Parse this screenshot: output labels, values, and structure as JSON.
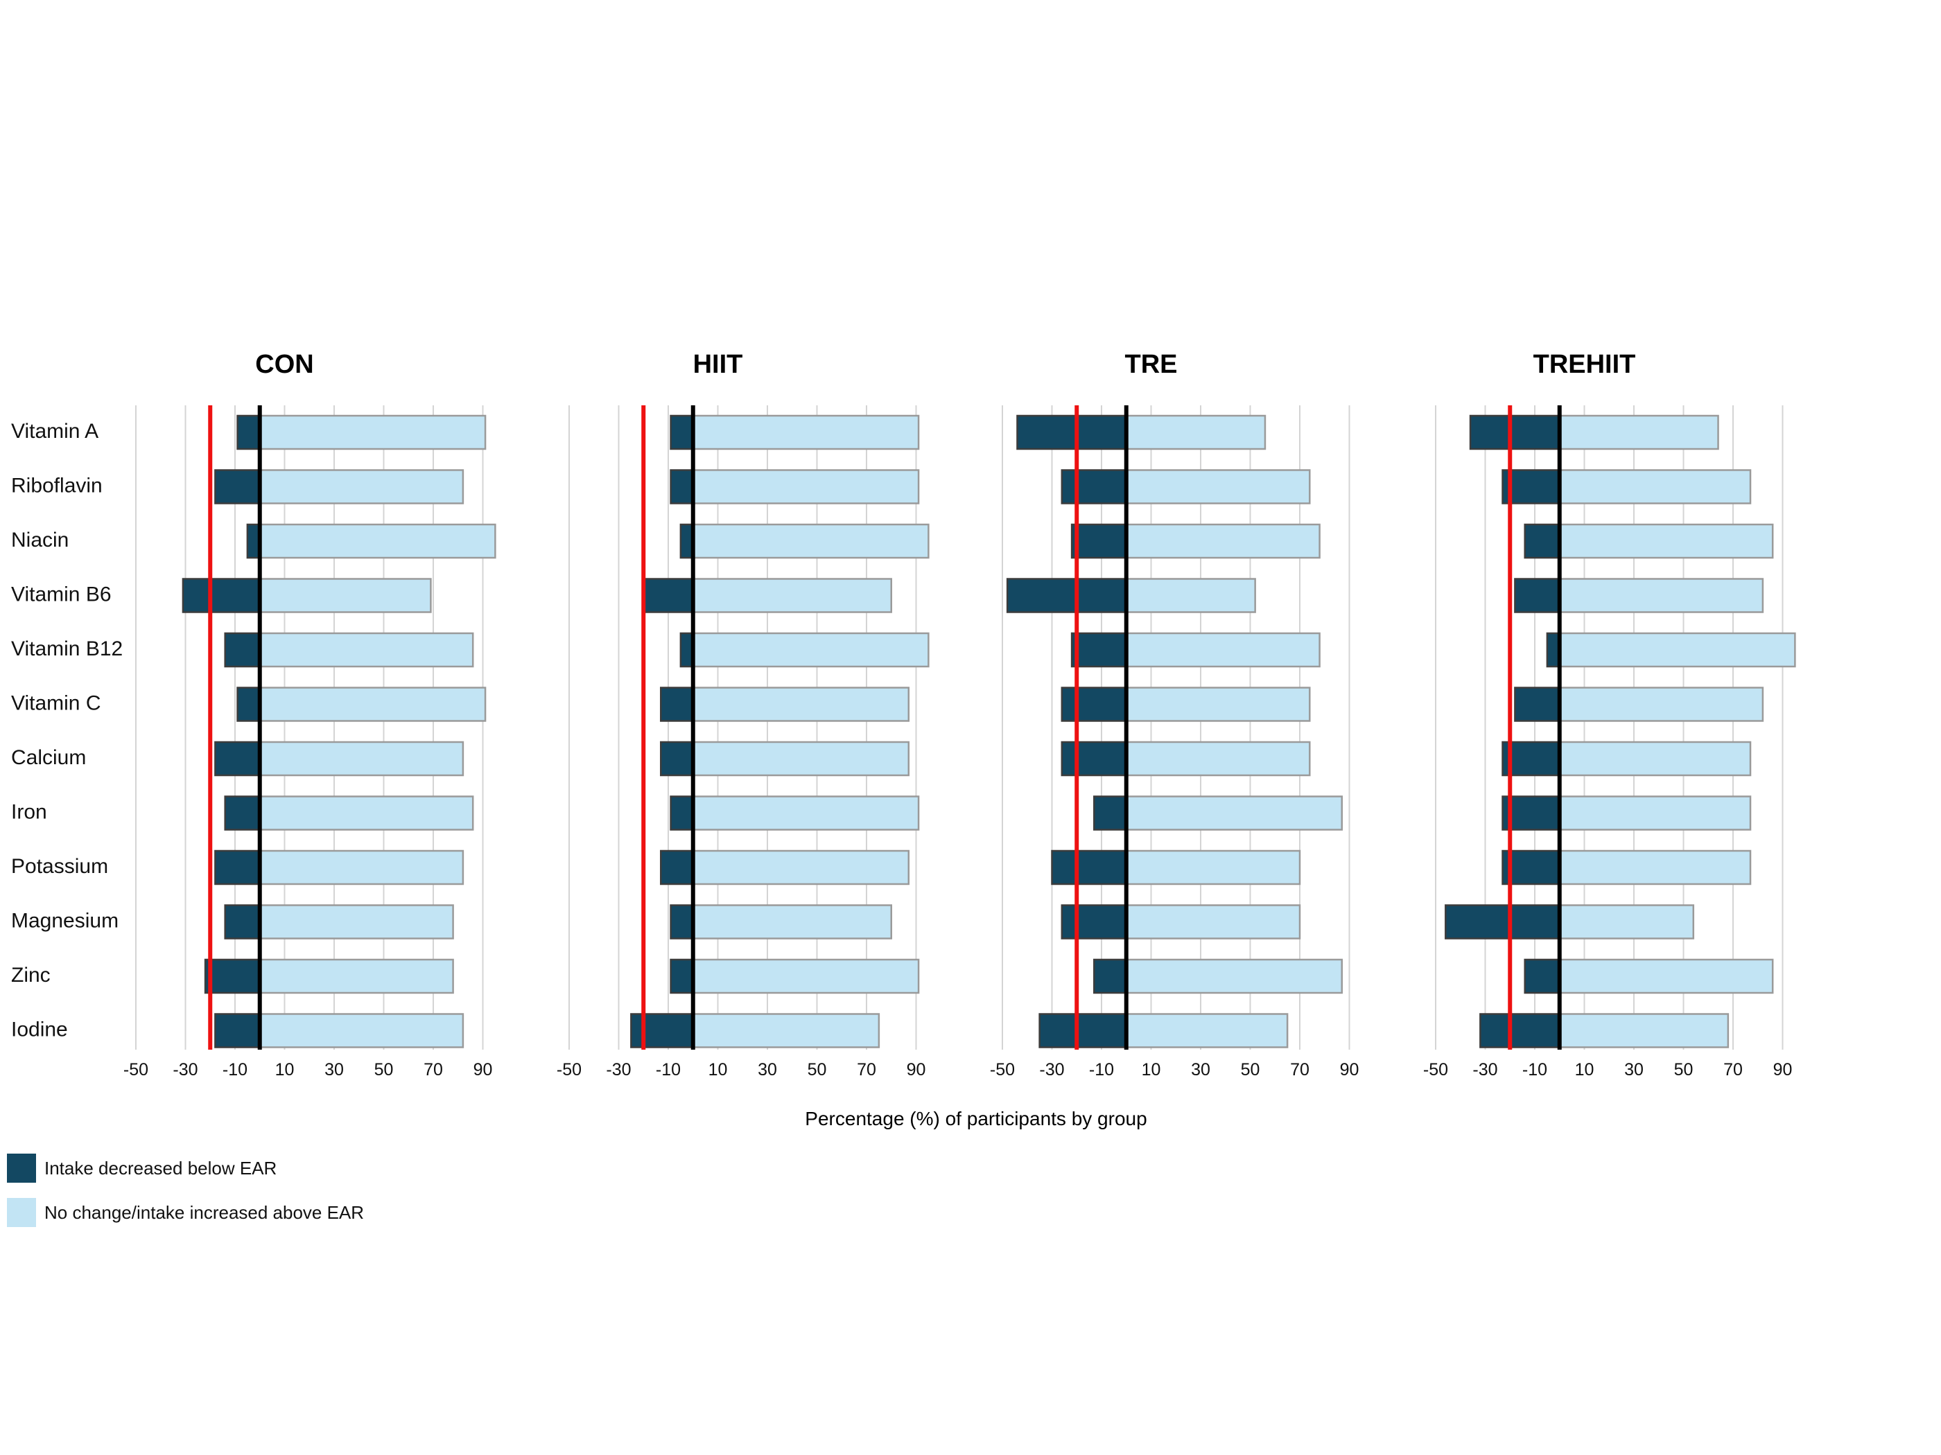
{
  "chart_data": {
    "type": "bar",
    "orientation": "horizontal",
    "stacked": "diverging",
    "xlabel": "Percentage (%) of participants by group",
    "xlim": [
      -50,
      100
    ],
    "xticks": [
      -50,
      -30,
      -10,
      10,
      30,
      50,
      70,
      90
    ],
    "reference_line": -20,
    "zero_line": 0,
    "grid": "vertical",
    "categories": [
      "Vitamin A",
      "Riboflavin",
      "Niacin",
      "Vitamin B6",
      "Vitamin B12",
      "Vitamin C",
      "Calcium",
      "Iron",
      "Potassium",
      "Magnesium",
      "Zinc",
      "Iodine"
    ],
    "panels": [
      {
        "title": "CON",
        "decreased": [
          -9,
          -18,
          -5,
          -31,
          -14,
          -9,
          -18,
          -14,
          -18,
          -14,
          -22,
          -18
        ],
        "increased": [
          91,
          82,
          95,
          69,
          86,
          91,
          82,
          86,
          82,
          78,
          78,
          82
        ]
      },
      {
        "title": "HIIT",
        "decreased": [
          -9,
          -9,
          -5,
          -20,
          -5,
          -13,
          -13,
          -9,
          -13,
          -9,
          -9,
          -25
        ],
        "increased": [
          91,
          91,
          95,
          80,
          95,
          87,
          87,
          91,
          87,
          80,
          91,
          75
        ]
      },
      {
        "title": "TRE",
        "decreased": [
          -44,
          -26,
          -22,
          -48,
          -22,
          -26,
          -26,
          -13,
          -30,
          -26,
          -13,
          -35
        ],
        "increased": [
          56,
          74,
          78,
          52,
          78,
          74,
          74,
          87,
          70,
          70,
          87,
          65
        ]
      },
      {
        "title": "TREHIIT",
        "decreased": [
          -36,
          -23,
          -14,
          -18,
          -5,
          -18,
          -23,
          -23,
          -23,
          -46,
          -14,
          -32
        ],
        "increased": [
          64,
          77,
          86,
          82,
          95,
          82,
          77,
          77,
          77,
          54,
          86,
          68
        ]
      }
    ],
    "legend": [
      {
        "label": "Intake decreased below EAR",
        "color": "#134862"
      },
      {
        "label": "No change/intake increased above EAR",
        "color": "#c2e4f4"
      }
    ],
    "legend_position": "bottom-left",
    "colors": {
      "decreased": "#134862",
      "increased": "#c2e4f4",
      "reference": "#ee1111",
      "zero": "#000000",
      "grid": "#d4d4d4"
    }
  }
}
